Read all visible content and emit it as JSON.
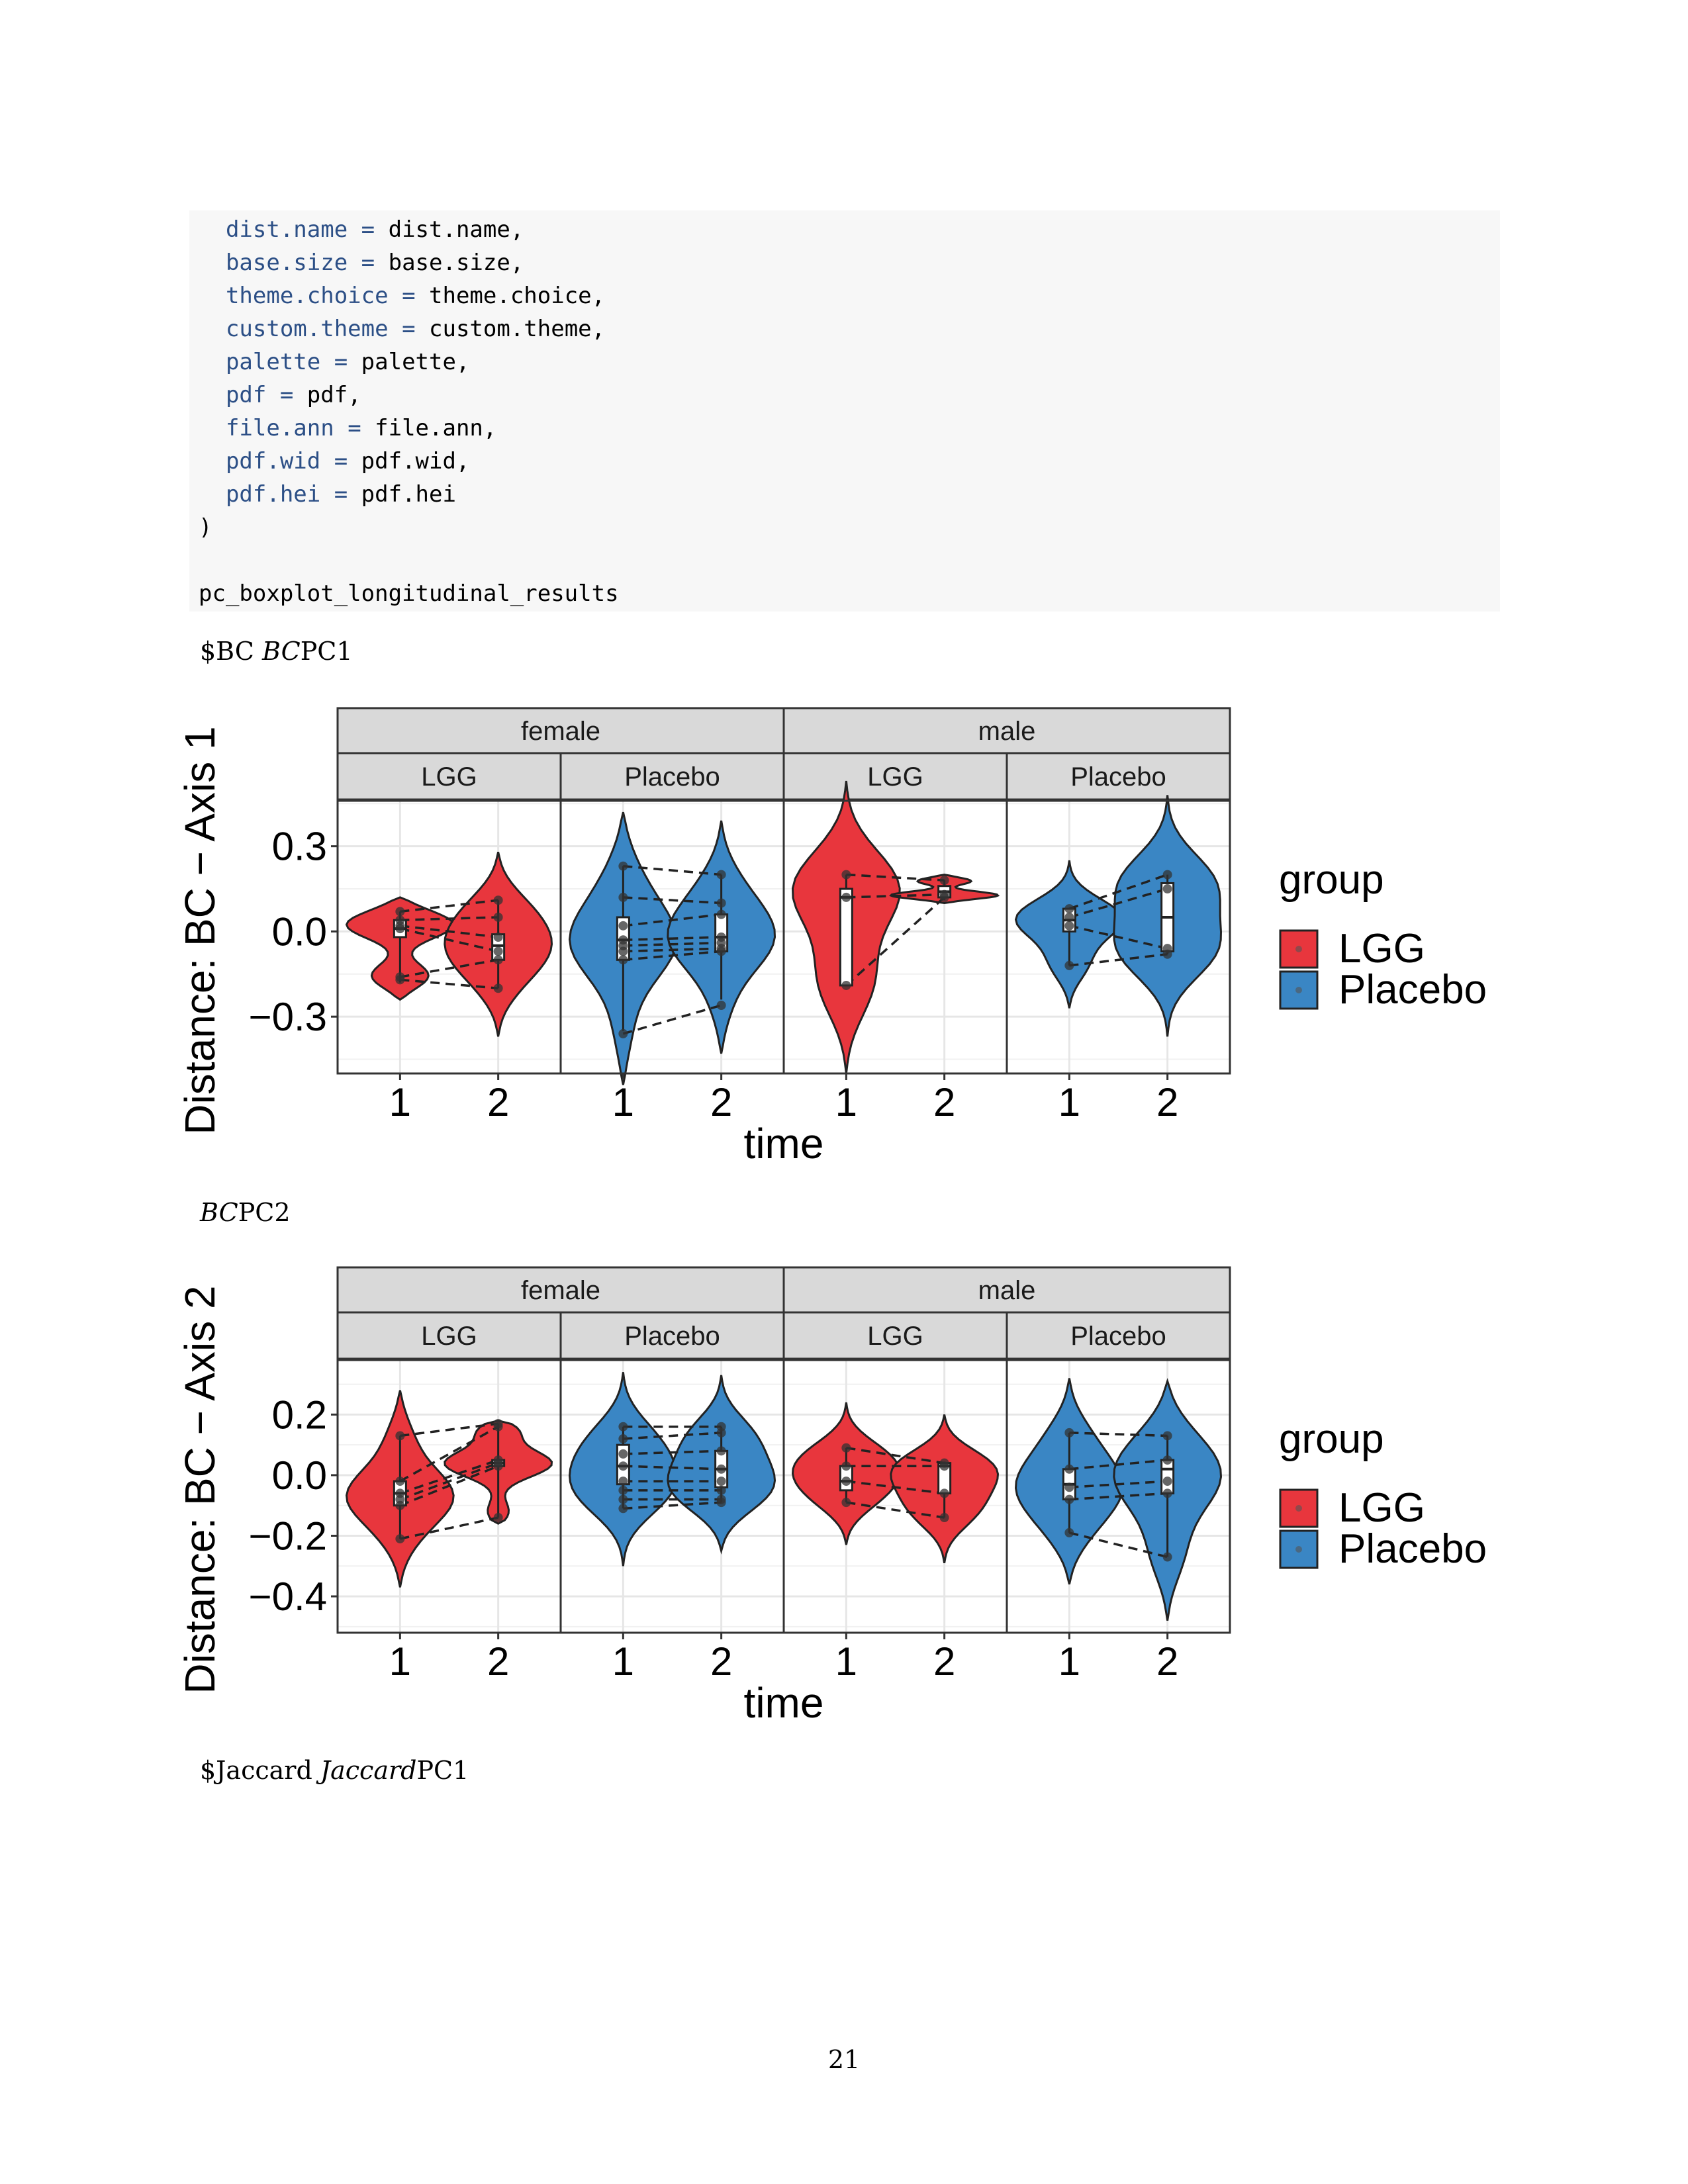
{
  "code": {
    "lines": [
      {
        "indent": "  ",
        "arg": "dist.name",
        "op": " = ",
        "rest": "dist.name,"
      },
      {
        "indent": "  ",
        "arg": "base.size",
        "op": " = ",
        "rest": "base.size,"
      },
      {
        "indent": "  ",
        "arg": "theme.choice",
        "op": " = ",
        "rest": "theme.choice,"
      },
      {
        "indent": "  ",
        "arg": "custom.theme",
        "op": " = ",
        "rest": "custom.theme,"
      },
      {
        "indent": "  ",
        "arg": "palette",
        "op": " = ",
        "rest": "palette,"
      },
      {
        "indent": "  ",
        "arg": "pdf",
        "op": " = ",
        "rest": "pdf,"
      },
      {
        "indent": "  ",
        "arg": "file.ann",
        "op": " = ",
        "rest": "file.ann,"
      },
      {
        "indent": "  ",
        "arg": "pdf.wid",
        "op": " = ",
        "rest": "pdf.wid,"
      },
      {
        "indent": "  ",
        "arg": "pdf.hei",
        "op": " = ",
        "rest": "pdf.hei"
      },
      {
        "indent": "",
        "arg": "",
        "op": "",
        "rest": ")"
      },
      {
        "indent": "",
        "arg": "",
        "op": "",
        "rest": ""
      },
      {
        "indent": "",
        "arg": "",
        "op": "",
        "rest": "pc_boxplot_longitudinal_results"
      }
    ]
  },
  "captions": {
    "bc_pc1_prefix": "$BC ",
    "bc_pc1_italic": "BC",
    "bc_pc1_suffix": "PC1",
    "bc_pc2_italic": "BC",
    "bc_pc2_suffix": "PC2",
    "jaccard_prefix": "$Jaccard ",
    "jaccard_italic": "Jaccard",
    "jaccard_suffix": "PC1"
  },
  "page_number": "21",
  "colors": {
    "LGG": "#e8363d",
    "Placebo": "#3a86c4"
  },
  "chart_data": [
    {
      "type": "violin",
      "title": "",
      "xlabel": "time",
      "ylabel": "Distance: BC  − Axis 1",
      "ylim": [
        -0.5,
        0.46
      ],
      "yticks": [
        0.3,
        0.0,
        -0.3
      ],
      "ytick_labels": [
        "0.3",
        "0.0",
        "−0.3"
      ],
      "xtick_labels": [
        "1",
        "2"
      ],
      "facet_rows": [
        "female",
        "male"
      ],
      "facet_cols": [
        "LGG",
        "Placebo"
      ],
      "legend": {
        "title": "group",
        "entries": [
          "LGG",
          "Placebo"
        ],
        "position": "right"
      },
      "panels": [
        {
          "sex": "female",
          "group": "LGG",
          "t1": {
            "min": -0.24,
            "max": 0.12,
            "q1": -0.02,
            "median": 0.01,
            "q3": 0.04,
            "lo": -0.18,
            "hi": 0.07,
            "points": [
              0.07,
              0.04,
              0.02,
              0.01,
              -0.16,
              -0.17
            ]
          },
          "t2": {
            "min": -0.37,
            "max": 0.28,
            "q1": -0.1,
            "median": -0.05,
            "q3": -0.01,
            "lo": -0.2,
            "hi": 0.11,
            "points": [
              0.11,
              0.05,
              -0.02,
              -0.07,
              -0.1,
              -0.2
            ]
          }
        },
        {
          "sex": "female",
          "group": "Placebo",
          "t1": {
            "min": -0.54,
            "max": 0.42,
            "q1": -0.1,
            "median": -0.03,
            "q3": 0.05,
            "lo": -0.35,
            "hi": 0.23,
            "points": [
              0.23,
              0.12,
              0.02,
              -0.03,
              -0.05,
              -0.07,
              -0.1,
              -0.36
            ]
          },
          "t2": {
            "min": -0.43,
            "max": 0.39,
            "q1": -0.07,
            "median": -0.02,
            "q3": 0.06,
            "lo": -0.24,
            "hi": 0.2,
            "points": [
              0.2,
              0.1,
              0.06,
              -0.02,
              -0.04,
              -0.06,
              -0.07,
              -0.26
            ]
          }
        },
        {
          "sex": "male",
          "group": "LGG",
          "t1": {
            "min": -0.5,
            "max": 0.53,
            "q1": -0.19,
            "median": 0.12,
            "q3": 0.15,
            "lo": -0.19,
            "hi": 0.2,
            "points": [
              0.2,
              0.12,
              -0.19
            ]
          },
          "t2": {
            "min": 0.1,
            "max": 0.2,
            "q1": 0.12,
            "median": 0.14,
            "q3": 0.16,
            "lo": 0.11,
            "hi": 0.18,
            "points": [
              0.18,
              0.13,
              0.12
            ]
          }
        },
        {
          "sex": "male",
          "group": "Placebo",
          "t1": {
            "min": -0.27,
            "max": 0.25,
            "q1": 0.0,
            "median": 0.04,
            "q3": 0.08,
            "lo": -0.12,
            "hi": 0.08,
            "points": [
              0.08,
              0.05,
              0.02,
              -0.12
            ]
          },
          "t2": {
            "min": -0.37,
            "max": 0.48,
            "q1": -0.07,
            "median": 0.05,
            "q3": 0.17,
            "lo": -0.08,
            "hi": 0.2,
            "points": [
              0.2,
              0.15,
              -0.06,
              -0.08
            ]
          }
        }
      ]
    },
    {
      "type": "violin",
      "title": "",
      "xlabel": "time",
      "ylabel": "Distance: BC  − Axis 2",
      "ylim": [
        -0.52,
        0.38
      ],
      "yticks": [
        0.2,
        0.0,
        -0.2,
        -0.4
      ],
      "ytick_labels": [
        "0.2",
        "0.0",
        "−0.2",
        "−0.4"
      ],
      "xtick_labels": [
        "1",
        "2"
      ],
      "facet_rows": [
        "female",
        "male"
      ],
      "facet_cols": [
        "LGG",
        "Placebo"
      ],
      "legend": {
        "title": "group",
        "entries": [
          "LGG",
          "Placebo"
        ],
        "position": "right"
      },
      "panels": [
        {
          "sex": "female",
          "group": "LGG",
          "t1": {
            "min": -0.37,
            "max": 0.28,
            "q1": -0.1,
            "median": -0.06,
            "q3": -0.02,
            "lo": -0.21,
            "hi": 0.13,
            "points": [
              0.13,
              -0.02,
              -0.06,
              -0.08,
              -0.1,
              -0.21
            ]
          },
          "t2": {
            "min": -0.16,
            "max": 0.18,
            "q1": 0.03,
            "median": 0.04,
            "q3": 0.05,
            "lo": -0.14,
            "hi": 0.17,
            "points": [
              0.17,
              0.16,
              0.05,
              0.04,
              0.03,
              -0.14
            ]
          }
        },
        {
          "sex": "female",
          "group": "Placebo",
          "t1": {
            "min": -0.3,
            "max": 0.34,
            "q1": -0.03,
            "median": 0.03,
            "q3": 0.1,
            "lo": -0.11,
            "hi": 0.16,
            "points": [
              0.16,
              0.12,
              0.07,
              0.03,
              -0.02,
              -0.05,
              -0.08,
              -0.11
            ]
          },
          "t2": {
            "min": -0.25,
            "max": 0.33,
            "q1": -0.04,
            "median": 0.02,
            "q3": 0.08,
            "lo": -0.09,
            "hi": 0.16,
            "points": [
              0.16,
              0.14,
              0.08,
              0.02,
              -0.02,
              -0.05,
              -0.08,
              -0.09
            ]
          }
        },
        {
          "sex": "male",
          "group": "LGG",
          "t1": {
            "min": -0.23,
            "max": 0.24,
            "q1": -0.05,
            "median": -0.02,
            "q3": 0.03,
            "lo": -0.09,
            "hi": 0.09,
            "points": [
              0.09,
              0.03,
              -0.02,
              -0.09
            ]
          },
          "t2": {
            "min": -0.29,
            "max": 0.2,
            "q1": -0.06,
            "median": 0.03,
            "q3": 0.04,
            "lo": -0.14,
            "hi": 0.04,
            "points": [
              0.04,
              0.03,
              -0.06,
              -0.14
            ]
          }
        },
        {
          "sex": "male",
          "group": "Placebo",
          "t1": {
            "min": -0.36,
            "max": 0.32,
            "q1": -0.08,
            "median": -0.03,
            "q3": 0.02,
            "lo": -0.19,
            "hi": 0.14,
            "points": [
              0.14,
              0.02,
              -0.04,
              -0.08,
              -0.19
            ]
          },
          "t2": {
            "min": -0.48,
            "max": 0.31,
            "q1": -0.06,
            "median": 0.02,
            "q3": 0.05,
            "lo": -0.27,
            "hi": 0.13,
            "points": [
              0.13,
              0.05,
              -0.02,
              -0.06,
              -0.27
            ]
          }
        }
      ]
    }
  ]
}
